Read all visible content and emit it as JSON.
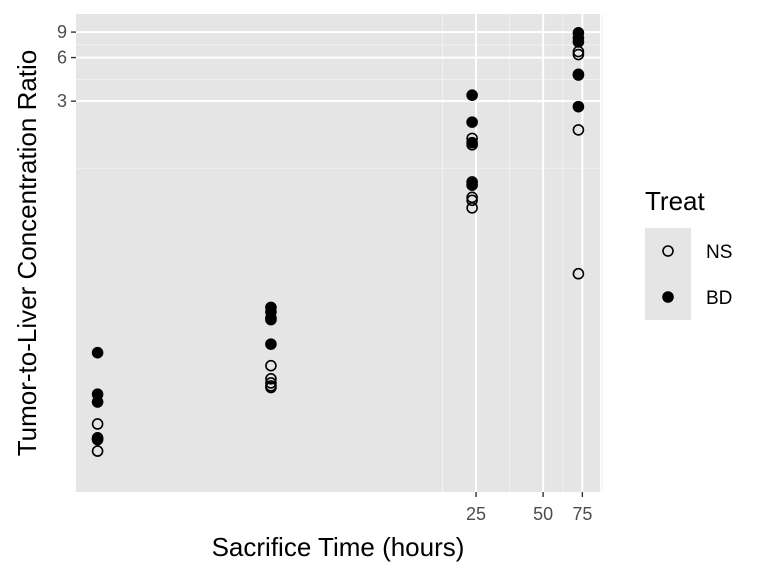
{
  "chart_data": {
    "type": "scatter",
    "xlabel": "Sacrifice Time (hours)",
    "ylabel": "Tumor-to-Liver Concentration Ratio",
    "x_scale": "log",
    "y_scale": "log",
    "xlim": [
      0.4,
      90
    ],
    "ylim": [
      0.006,
      12
    ],
    "x_ticks": [
      25,
      50,
      75
    ],
    "x_tick_labels": [
      "25",
      "50",
      "75"
    ],
    "y_ticks": [
      3,
      6,
      9
    ],
    "y_tick_labels": [
      "3",
      "6",
      "9"
    ],
    "grid": true,
    "legend": {
      "title": "Treat",
      "position": "right",
      "entries": [
        {
          "label": "NS",
          "marker": "open-circle"
        },
        {
          "label": "BD",
          "marker": "filled-circle"
        }
      ]
    },
    "series": [
      {
        "name": "NS",
        "marker": "open-circle",
        "points": [
          {
            "x": 0.5,
            "y": 0.0177
          },
          {
            "x": 0.5,
            "y": 0.014
          },
          {
            "x": 0.5,
            "y": 0.0138
          },
          {
            "x": 0.5,
            "y": 0.0115
          },
          {
            "x": 3,
            "y": 0.0447
          },
          {
            "x": 3,
            "y": 0.0363
          },
          {
            "x": 3,
            "y": 0.034
          },
          {
            "x": 3,
            "y": 0.0324
          },
          {
            "x": 3,
            "y": 0.0316
          },
          {
            "x": 24,
            "y": 1.66
          },
          {
            "x": 24,
            "y": 1.5
          },
          {
            "x": 24,
            "y": 0.65
          },
          {
            "x": 24,
            "y": 0.62
          },
          {
            "x": 24,
            "y": 0.55
          },
          {
            "x": 72,
            "y": 6.6
          },
          {
            "x": 72,
            "y": 6.3
          },
          {
            "x": 72,
            "y": 4.55
          },
          {
            "x": 72,
            "y": 1.9
          },
          {
            "x": 72,
            "y": 0.193
          }
        ]
      },
      {
        "name": "BD",
        "marker": "filled-circle",
        "points": [
          {
            "x": 0.5,
            "y": 0.055
          },
          {
            "x": 0.5,
            "y": 0.0284
          },
          {
            "x": 0.5,
            "y": 0.0251
          },
          {
            "x": 0.5,
            "y": 0.0142
          },
          {
            "x": 3,
            "y": 0.113
          },
          {
            "x": 3,
            "y": 0.105
          },
          {
            "x": 3,
            "y": 0.0955
          },
          {
            "x": 3,
            "y": 0.093
          },
          {
            "x": 3,
            "y": 0.063
          },
          {
            "x": 24,
            "y": 3.3
          },
          {
            "x": 24,
            "y": 2.15
          },
          {
            "x": 24,
            "y": 1.55
          },
          {
            "x": 24,
            "y": 0.83
          },
          {
            "x": 24,
            "y": 0.79
          },
          {
            "x": 72,
            "y": 8.9
          },
          {
            "x": 72,
            "y": 8.2
          },
          {
            "x": 72,
            "y": 7.7
          },
          {
            "x": 72,
            "y": 4.6
          },
          {
            "x": 72,
            "y": 2.75
          }
        ]
      }
    ]
  }
}
